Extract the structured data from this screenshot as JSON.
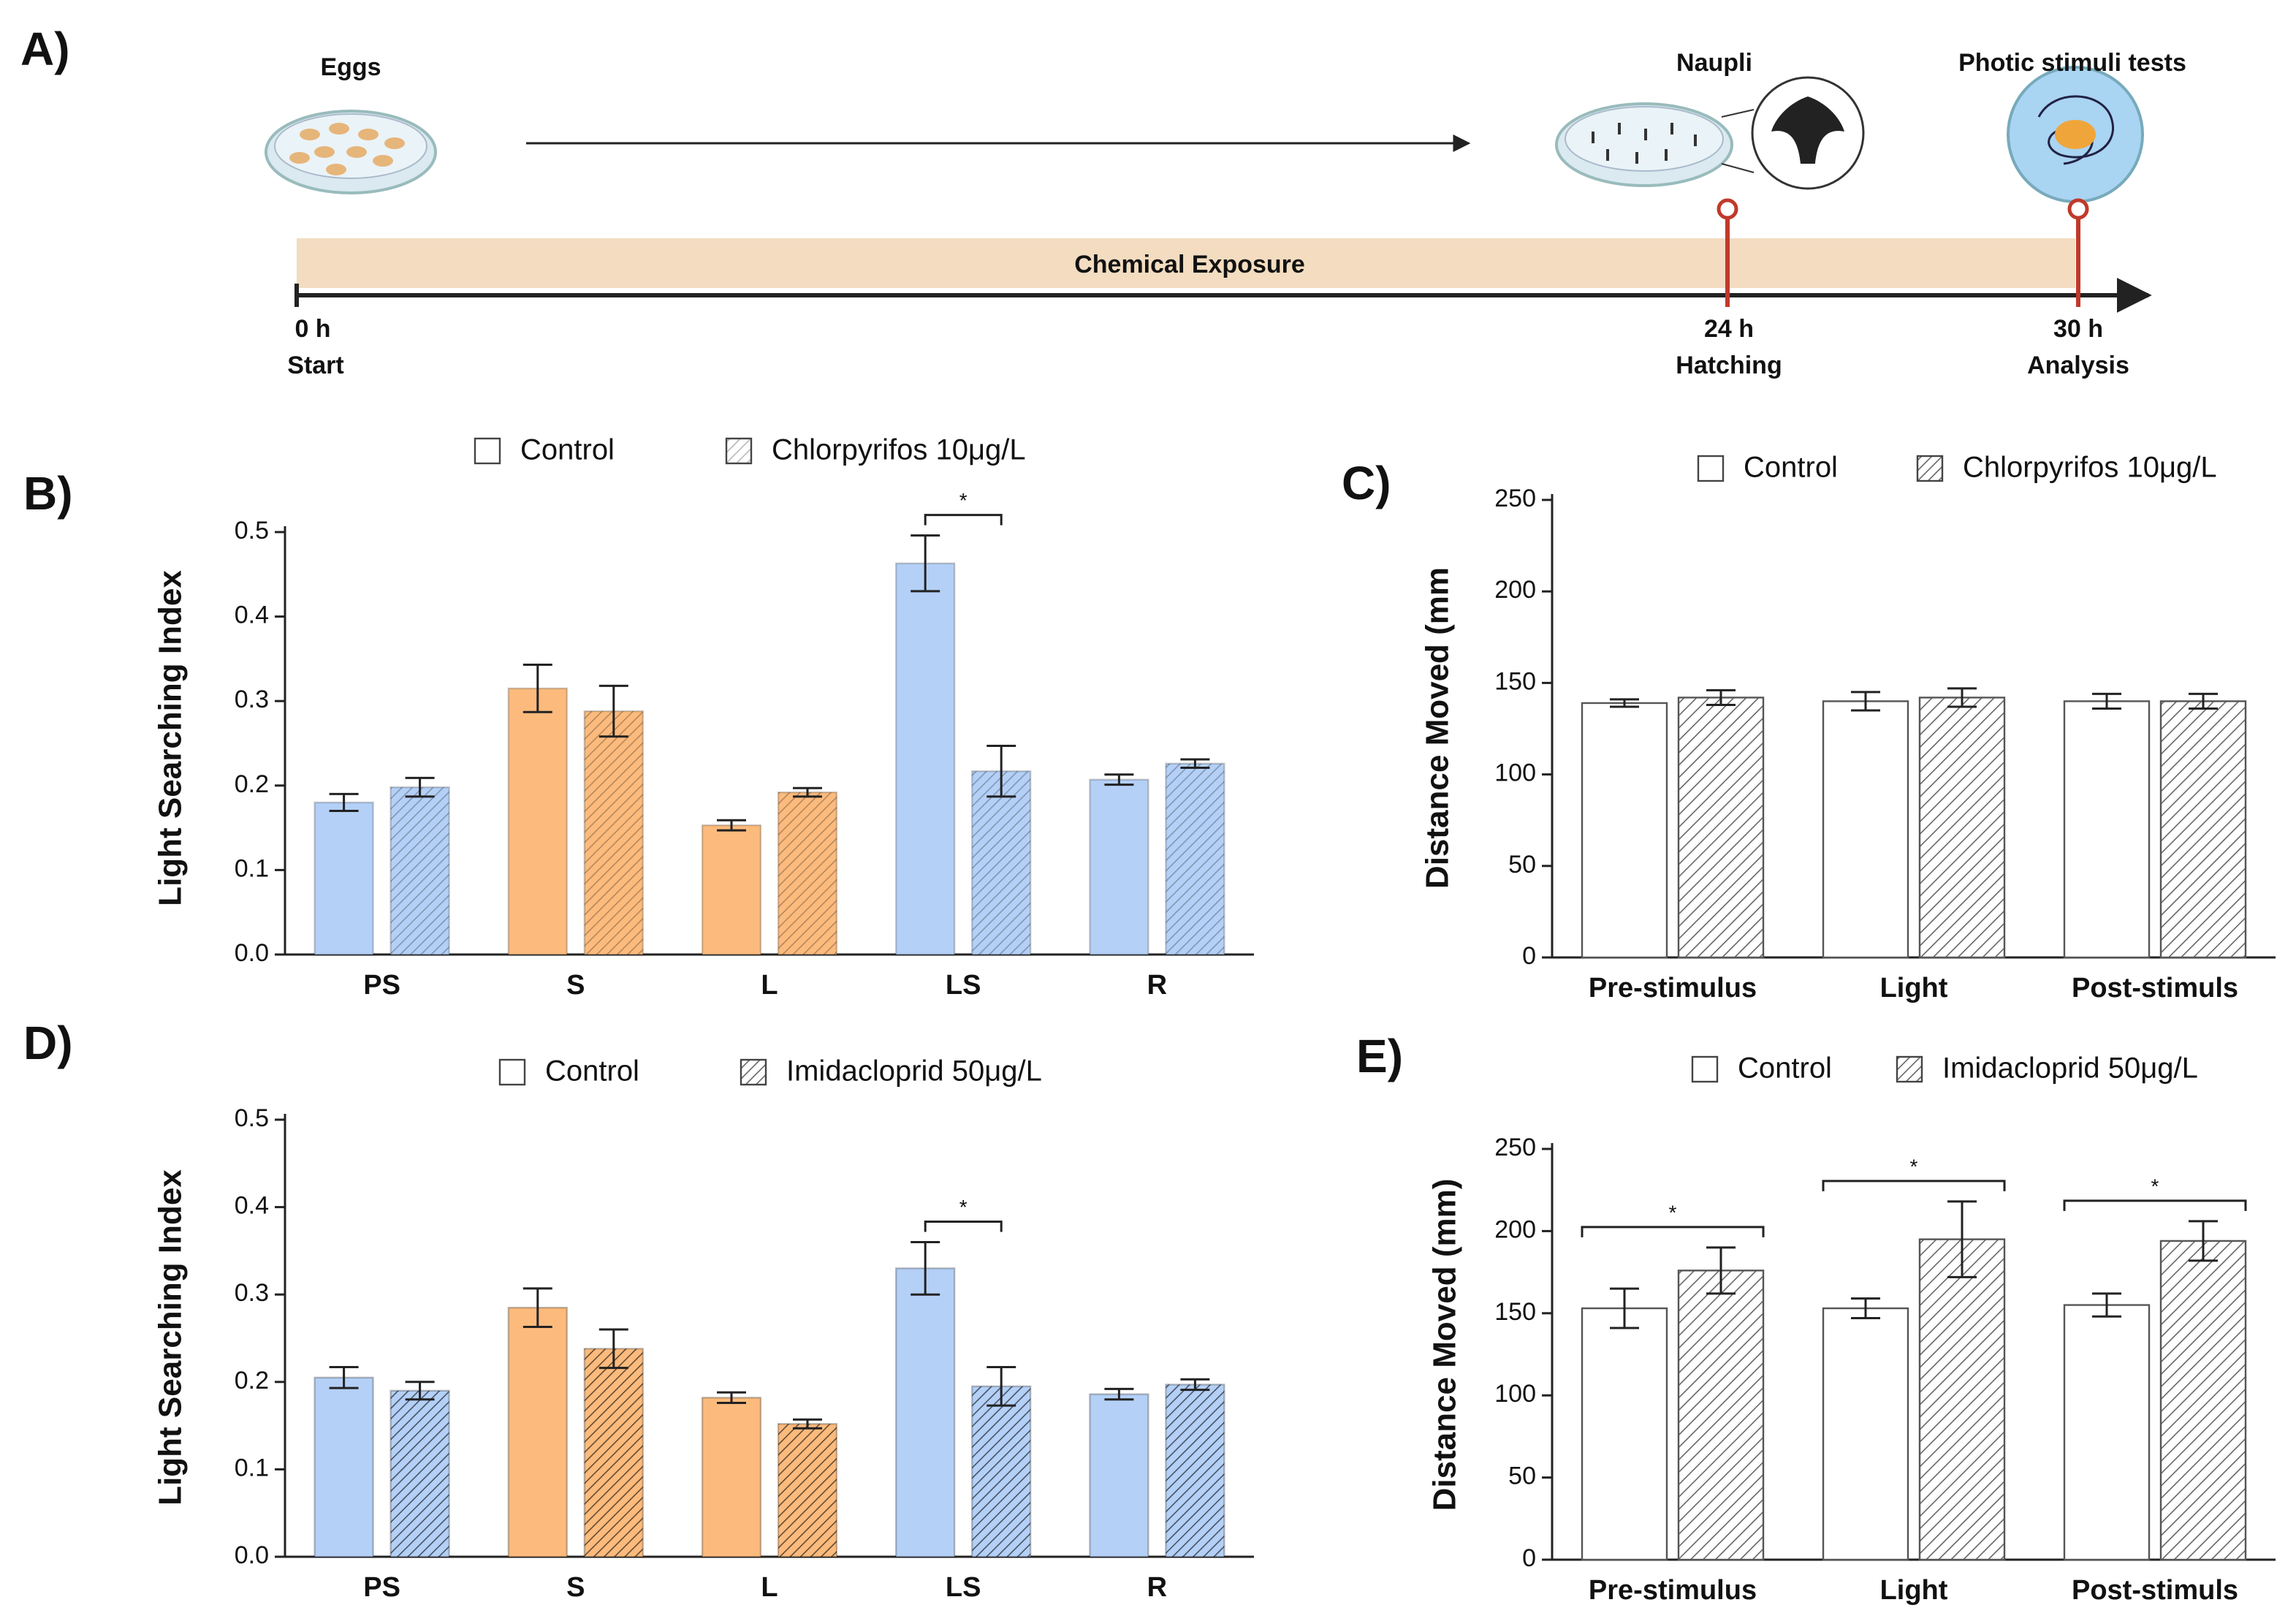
{
  "timeline": {
    "label": "A)",
    "stages": [
      "Eggs",
      "Naupli",
      "Photic stimuli tests"
    ],
    "bar": "Chemical Exposure",
    "marks": [
      {
        "time": "0 h",
        "event": "Start"
      },
      {
        "time": "24 h",
        "event": "Hatching"
      },
      {
        "time": "30 h",
        "event": "Analysis"
      }
    ]
  },
  "chart_data": [
    {
      "type": "bar",
      "label": "B)",
      "ylabel": "Light Searching Index",
      "categories": [
        "PS",
        "S",
        "L",
        "LS",
        "R"
      ],
      "category_colors": [
        "#b4d0f7",
        "#fcbb7d",
        "#fcbb7d",
        "#b4d0f7",
        "#b4d0f7"
      ],
      "series": [
        {
          "name": "Control",
          "color": "#ffffff",
          "hatch": false,
          "values": [
            0.18,
            0.315,
            0.153,
            0.463,
            0.207
          ],
          "errors": [
            0.01,
            0.028,
            0.006,
            0.033,
            0.006
          ]
        },
        {
          "name": "Chlorpyrifos 10μg/L",
          "color": "#ffffff",
          "hatch": true,
          "values": [
            0.198,
            0.288,
            0.192,
            0.217,
            0.226
          ],
          "errors": [
            0.011,
            0.03,
            0.005,
            0.03,
            0.005
          ]
        }
      ],
      "ylim": [
        0,
        0.5
      ],
      "yticks": [
        {
          "value": 0,
          "label": "0.0"
        },
        0.1,
        0.2,
        0.3,
        0.4,
        0.5
      ],
      "annotations": [
        {
          "text": "*",
          "category": "LS"
        }
      ]
    },
    {
      "type": "bar",
      "label": "C)",
      "ylabel": "Distance Moved (mm",
      "categories": [
        "Pre-stimulus",
        "Light",
        "Post-stimuls"
      ],
      "series": [
        {
          "name": "Control",
          "color": "#ffffff",
          "hatch": false,
          "values": [
            139,
            140,
            140
          ],
          "errors": [
            2,
            5,
            4
          ]
        },
        {
          "name": "Chlorpyrifos 10μg/L",
          "color": "#ffffff",
          "hatch": true,
          "values": [
            142,
            142,
            140
          ],
          "errors": [
            4,
            5,
            4
          ]
        }
      ],
      "ylim": [
        0,
        250
      ],
      "yticks": [
        0,
        50,
        100,
        150,
        200,
        250
      ]
    },
    {
      "type": "bar",
      "label": "D)",
      "ylabel": "Light Searching Index",
      "categories": [
        "PS",
        "S",
        "L",
        "LS",
        "R"
      ],
      "category_colors": [
        "#b4d0f7",
        "#fcbb7d",
        "#fcbb7d",
        "#b4d0f7",
        "#b4d0f7"
      ],
      "series": [
        {
          "name": "Control",
          "color": "#ffffff",
          "hatch": false,
          "values": [
            0.205,
            0.285,
            0.182,
            0.33,
            0.186
          ],
          "errors": [
            0.012,
            0.022,
            0.006,
            0.03,
            0.006
          ]
        },
        {
          "name": "Imidacloprid 50μg/L",
          "color": "#ffffff",
          "hatch": true,
          "values": [
            0.19,
            0.238,
            0.152,
            0.195,
            0.197
          ],
          "errors": [
            0.01,
            0.022,
            0.005,
            0.022,
            0.006
          ]
        }
      ],
      "ylim": [
        0,
        0.5
      ],
      "yticks": [
        {
          "value": 0,
          "label": "0.0"
        },
        0.1,
        0.2,
        0.3,
        0.4,
        0.5
      ],
      "annotations": [
        {
          "text": "*",
          "category": "LS"
        }
      ]
    },
    {
      "type": "bar",
      "label": "E)",
      "ylabel": "Distance Moved (mm)",
      "categories": [
        "Pre-stimulus",
        "Light",
        "Post-stimuls"
      ],
      "series": [
        {
          "name": "Control",
          "color": "#ffffff",
          "hatch": false,
          "values": [
            153,
            153,
            155
          ],
          "errors": [
            12,
            6,
            7
          ]
        },
        {
          "name": "Imidacloprid 50μg/L",
          "color": "#ffffff",
          "hatch": true,
          "values": [
            176,
            195,
            194
          ],
          "errors": [
            14,
            23,
            12
          ]
        }
      ],
      "ylim": [
        0,
        250
      ],
      "yticks": [
        0,
        50,
        100,
        150,
        200,
        250
      ],
      "annotations": [
        {
          "text": "*",
          "category": "Pre-stimulus"
        },
        {
          "text": "*",
          "category": "Light"
        },
        {
          "text": "*",
          "category": "Post-stimuls"
        }
      ]
    }
  ]
}
